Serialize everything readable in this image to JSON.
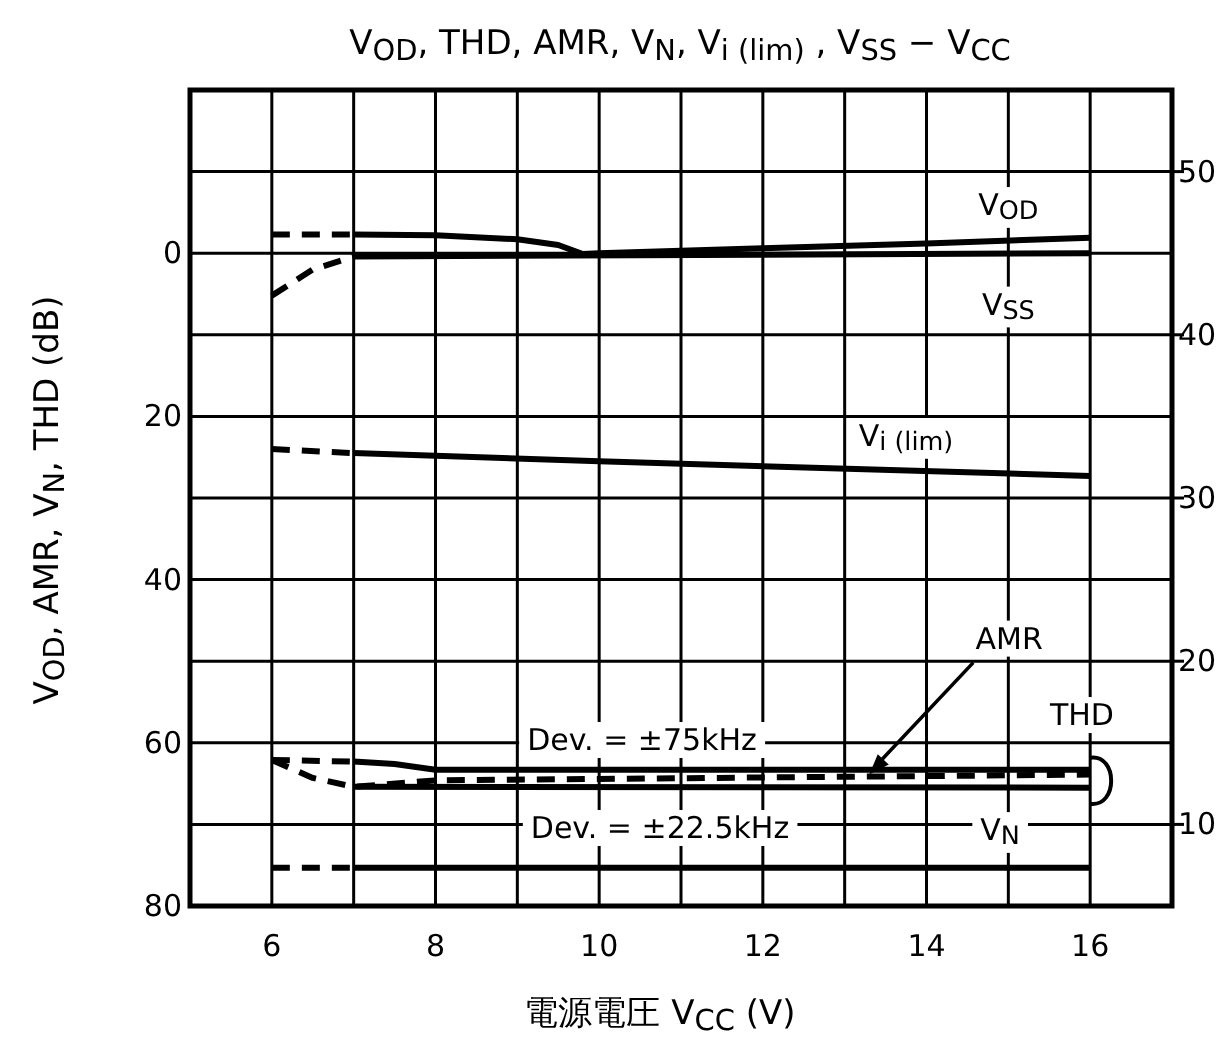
{
  "chart_data": {
    "type": "line",
    "title": "V$_{OD}$, THD, AMR, V$_{N}$, V$_{i (lim)}$ , V$_{SS}$  −  V$_{CC}$",
    "xlabel": "電源電圧   V$_{CC}$   (V)",
    "ylabel": "V$_{OD}$, AMR, V$_{N}$, THD   (dB)",
    "xlim": [
      5,
      17
    ],
    "xticks": [
      6,
      {
        "value": 7,
        "label": null
      },
      8,
      {
        "value": 9,
        "label": null
      },
      10,
      {
        "value": 11,
        "label": null
      },
      12,
      {
        "value": 13,
        "label": null
      },
      14,
      {
        "value": 15,
        "label": null
      },
      16
    ],
    "ylim": [
      80,
      -20
    ],
    "yticks": [
      {
        "value": -10,
        "label": null
      },
      0,
      {
        "value": 10,
        "label": null
      },
      20,
      {
        "value": 30,
        "label": null
      },
      40,
      {
        "value": 50,
        "label": null
      },
      60,
      {
        "value": 70,
        "label": null
      },
      80
    ],
    "y2lim": [
      5,
      55
    ],
    "y2ticks": [
      10,
      20,
      30,
      40,
      50
    ],
    "grid": true,
    "series": [
      {
        "color": "#000000",
        "line_style": "dashed",
        "x": [
          6,
          7
        ],
        "values": [
          -2.3,
          -2.3
        ]
      },
      {
        "color": "#000000",
        "line_style": "solid",
        "x": [
          7,
          8,
          9,
          9.5,
          9.8,
          10,
          12,
          14,
          16
        ],
        "values": [
          -2.3,
          -2.2,
          -1.7,
          -1.0,
          0.1,
          0,
          -0.6,
          -1.2,
          -1.9
        ]
      },
      {
        "color": "#000000",
        "line_style": "dashed",
        "x": [
          6,
          6.5,
          7
        ],
        "values": [
          5.2,
          2,
          0.4
        ]
      },
      {
        "color": "#000000",
        "line_style": "solid",
        "x": [
          7,
          16
        ],
        "values": [
          0.4,
          0
        ]
      },
      {
        "color": "#000000",
        "line_style": "dashed",
        "x": [
          6,
          7
        ],
        "values": [
          24,
          24.5
        ]
      },
      {
        "color": "#000000",
        "line_style": "solid",
        "x": [
          7,
          10,
          16
        ],
        "values": [
          24.5,
          25.5,
          27.3
        ]
      },
      {
        "color": "#000000",
        "line_style": "dashed",
        "x": [
          6,
          7
        ],
        "values": [
          62.1,
          62.3
        ]
      },
      {
        "color": "#000000",
        "line_style": "solid",
        "x": [
          7,
          7.5,
          8,
          16
        ],
        "values": [
          62.3,
          62.6,
          63.3,
          63.3
        ]
      },
      {
        "color": "#000000",
        "line_style": "dashed",
        "x": [
          6,
          6.5,
          7,
          8,
          16
        ],
        "values": [
          62.1,
          64.3,
          65.4,
          64.6,
          63.9
        ]
      },
      {
        "color": "#000000",
        "line_style": "solid",
        "x": [
          7,
          16
        ],
        "values": [
          65.4,
          65.5
        ]
      },
      {
        "color": "#000000",
        "line_style": "dashed",
        "x": [
          6,
          7
        ],
        "values": [
          75.3,
          75.3
        ]
      },
      {
        "color": "#000000",
        "line_style": "solid",
        "x": [
          7,
          16
        ],
        "values": [
          75.3,
          75.3
        ]
      }
    ],
    "annotations": [
      {
        "text": "V$_{OD}$",
        "x": 15.0,
        "y": -5.9
      },
      {
        "text": "V$_{SS}$",
        "x": 15.0,
        "y": 6.3
      },
      "V$_{i (lim)}$",
      {
        "text": "AMR",
        "x": 13.3,
        "y": 63.9
      },
      {
        "text": "THD",
        "x": 15.9,
        "y": 56.6
      },
      "Dev. = ±75kHz",
      "Dev. = ±22.5kHz",
      {
        "text": "V$_{N}$",
        "x": 14.9,
        "y": 70.7
      }
    ]
  }
}
